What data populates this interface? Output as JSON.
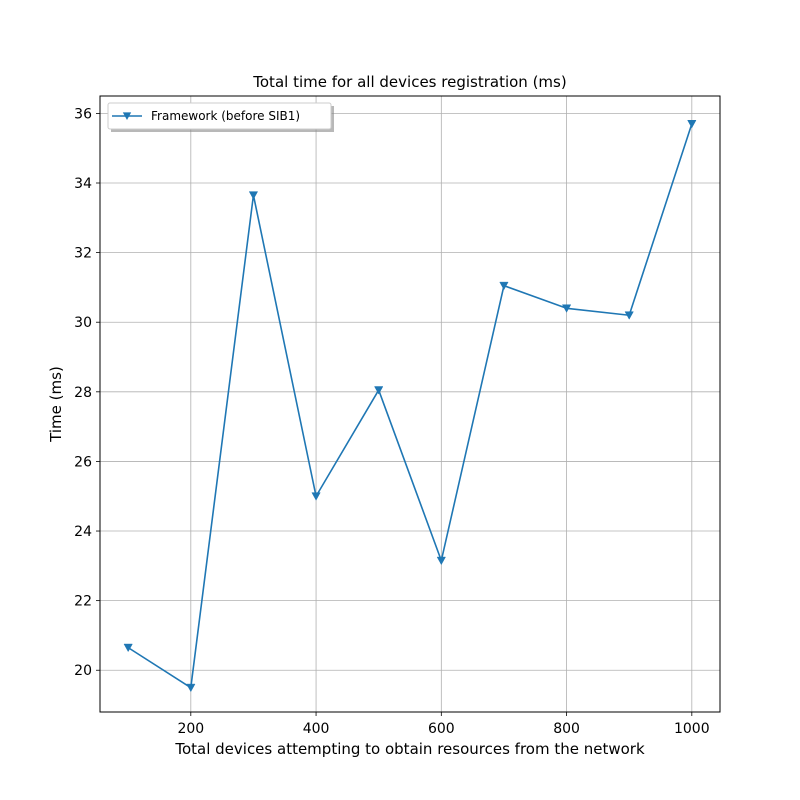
{
  "chart_data": {
    "type": "line",
    "title": "Total time for all devices registration (ms)",
    "xlabel": "Total devices attempting to obtain resources from the network",
    "ylabel": "Time (ms)",
    "xlim": [
      55,
      1045
    ],
    "ylim": [
      18.8,
      36.5
    ],
    "xticks": [
      200,
      400,
      600,
      800,
      1000
    ],
    "yticks": [
      20,
      22,
      24,
      26,
      28,
      30,
      32,
      34,
      36
    ],
    "grid": true,
    "legend_position": "top-left",
    "x": [
      100,
      200,
      300,
      400,
      500,
      600,
      700,
      800,
      900,
      1000
    ],
    "series": [
      {
        "name": "Framework (before SIB1)",
        "color": "#1f77b4",
        "marker": "triangle-down",
        "values": [
          20.65,
          19.5,
          33.65,
          25.0,
          28.05,
          23.15,
          31.05,
          30.4,
          30.2,
          35.7
        ]
      }
    ]
  }
}
